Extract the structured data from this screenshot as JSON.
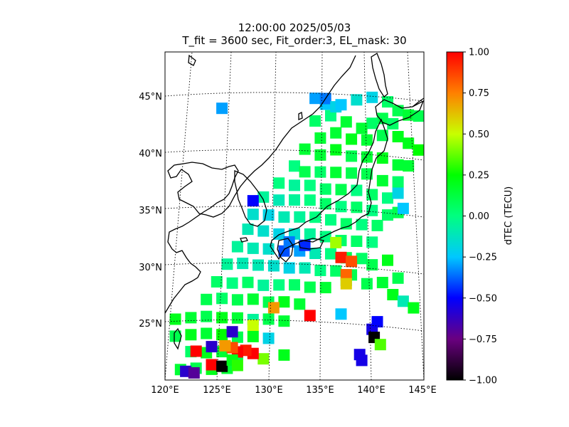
{
  "figure": {
    "title_line1": "12:00:00 2025/05/03",
    "title_line2": "T_fit = 3600 sec, Fit_order:3, EL_mask: 30"
  },
  "chart_data": {
    "type": "heatmap",
    "map": {
      "projection": "conic",
      "lon_range": [
        120,
        145
      ],
      "lat_range": [
        20,
        49
      ],
      "coastlines": true,
      "grid": true,
      "lon_ticks": [
        120,
        125,
        130,
        135,
        140,
        145
      ],
      "lon_tick_labels": [
        "120°E",
        "125°E",
        "130°E",
        "135°E",
        "140°E",
        "145°E"
      ],
      "lat_ticks": [
        25,
        30,
        35,
        40,
        45
      ],
      "lat_tick_labels": [
        "25°N",
        "30°N",
        "35°N",
        "40°N",
        "45°N"
      ]
    },
    "colorbar": {
      "label": "dTEC (TECU)",
      "vmin": -1.0,
      "vmax": 1.0,
      "ticks": [
        -1.0,
        -0.75,
        -0.5,
        -0.25,
        0.0,
        0.25,
        0.5,
        0.75,
        1.0
      ],
      "tick_labels": [
        "−1.00",
        "−0.75",
        "−0.50",
        "−0.25",
        "0.00",
        "0.25",
        "0.50",
        "0.75",
        "1.00"
      ],
      "colormap": [
        "#000000",
        "#6a0080",
        "#0000ff",
        "#00c8ff",
        "#00ff80",
        "#00ff00",
        "#c8ff00",
        "#ff8000",
        "#ff0000"
      ]
    },
    "cells": [
      {
        "lon": 125.5,
        "lat": 43.8,
        "v": -0.3
      },
      {
        "lon": 134.5,
        "lat": 44.5,
        "v": -0.3
      },
      {
        "lon": 135.5,
        "lat": 44.0,
        "v": -0.25
      },
      {
        "lon": 138.5,
        "lat": 44.5,
        "v": -0.15
      },
      {
        "lon": 140.0,
        "lat": 44.8,
        "v": -0.2
      },
      {
        "lon": 141.5,
        "lat": 44.5,
        "v": 0.05
      },
      {
        "lon": 142.5,
        "lat": 43.8,
        "v": 0.1
      },
      {
        "lon": 143.5,
        "lat": 43.5,
        "v": 0.15
      },
      {
        "lon": 144.5,
        "lat": 43.5,
        "v": 0.1
      },
      {
        "lon": 141.0,
        "lat": 43.0,
        "v": 0.1
      },
      {
        "lon": 142.0,
        "lat": 42.6,
        "v": 0.05
      },
      {
        "lon": 140.0,
        "lat": 42.5,
        "v": 0.05
      },
      {
        "lon": 139.0,
        "lat": 42.0,
        "v": 0.15
      },
      {
        "lon": 137.5,
        "lat": 42.5,
        "v": 0.15
      },
      {
        "lon": 136.0,
        "lat": 43.0,
        "v": 0.0
      },
      {
        "lon": 134.5,
        "lat": 42.5,
        "v": 0.05
      },
      {
        "lon": 135.0,
        "lat": 41.0,
        "v": 0.15
      },
      {
        "lon": 136.5,
        "lat": 41.5,
        "v": 0.15
      },
      {
        "lon": 138.0,
        "lat": 41.0,
        "v": 0.2
      },
      {
        "lon": 139.5,
        "lat": 41.0,
        "v": 0.15
      },
      {
        "lon": 141.0,
        "lat": 41.5,
        "v": 0.1
      },
      {
        "lon": 142.5,
        "lat": 41.5,
        "v": 0.2
      },
      {
        "lon": 143.5,
        "lat": 41.0,
        "v": 0.2
      },
      {
        "lon": 144.5,
        "lat": 40.5,
        "v": 0.25
      },
      {
        "lon": 133.5,
        "lat": 40.0,
        "v": 0.15
      },
      {
        "lon": 135.0,
        "lat": 39.5,
        "v": 0.15
      },
      {
        "lon": 136.5,
        "lat": 40.0,
        "v": 0.2
      },
      {
        "lon": 138.0,
        "lat": 39.5,
        "v": 0.1
      },
      {
        "lon": 139.5,
        "lat": 39.5,
        "v": 0.15
      },
      {
        "lon": 141.0,
        "lat": 39.5,
        "v": 0.2
      },
      {
        "lon": 142.5,
        "lat": 39.0,
        "v": 0.15
      },
      {
        "lon": 143.5,
        "lat": 39.0,
        "v": 0.15
      },
      {
        "lon": 132.5,
        "lat": 38.5,
        "v": 0.0
      },
      {
        "lon": 133.5,
        "lat": 38.0,
        "v": 0.1
      },
      {
        "lon": 135.0,
        "lat": 38.0,
        "v": 0.05
      },
      {
        "lon": 136.5,
        "lat": 38.0,
        "v": 0.15
      },
      {
        "lon": 138.0,
        "lat": 38.0,
        "v": 0.1
      },
      {
        "lon": 139.5,
        "lat": 38.0,
        "v": 0.1
      },
      {
        "lon": 141.0,
        "lat": 37.5,
        "v": 0.15
      },
      {
        "lon": 142.5,
        "lat": 37.5,
        "v": 0.05
      },
      {
        "lon": 131.0,
        "lat": 37.0,
        "v": 0.0
      },
      {
        "lon": 132.5,
        "lat": 36.8,
        "v": -0.05
      },
      {
        "lon": 134.0,
        "lat": 36.8,
        "v": 0.0
      },
      {
        "lon": 135.5,
        "lat": 36.5,
        "v": 0.05
      },
      {
        "lon": 137.0,
        "lat": 36.5,
        "v": 0.1
      },
      {
        "lon": 138.5,
        "lat": 36.5,
        "v": 0.0
      },
      {
        "lon": 140.0,
        "lat": 36.2,
        "v": 0.05
      },
      {
        "lon": 141.5,
        "lat": 36.0,
        "v": 0.0
      },
      {
        "lon": 142.5,
        "lat": 36.5,
        "v": -0.2
      },
      {
        "lon": 129.5,
        "lat": 35.8,
        "v": -0.05
      },
      {
        "lon": 131.0,
        "lat": 35.5,
        "v": -0.1
      },
      {
        "lon": 132.5,
        "lat": 35.5,
        "v": -0.05
      },
      {
        "lon": 134.0,
        "lat": 35.5,
        "v": 0.0
      },
      {
        "lon": 135.5,
        "lat": 35.2,
        "v": 0.05
      },
      {
        "lon": 137.0,
        "lat": 35.0,
        "v": 0.0
      },
      {
        "lon": 138.5,
        "lat": 35.0,
        "v": 0.05
      },
      {
        "lon": 140.0,
        "lat": 34.8,
        "v": 0.0
      },
      {
        "lon": 141.5,
        "lat": 34.5,
        "v": 0.05
      },
      {
        "lon": 142.5,
        "lat": 34.8,
        "v": 0.1
      },
      {
        "lon": 128.5,
        "lat": 34.3,
        "v": -0.15
      },
      {
        "lon": 130.0,
        "lat": 34.2,
        "v": -0.2
      },
      {
        "lon": 131.5,
        "lat": 34.0,
        "v": -0.1
      },
      {
        "lon": 133.0,
        "lat": 34.0,
        "v": -0.05
      },
      {
        "lon": 134.5,
        "lat": 34.0,
        "v": 0.0
      },
      {
        "lon": 136.0,
        "lat": 33.8,
        "v": 0.0
      },
      {
        "lon": 137.5,
        "lat": 33.5,
        "v": 0.05
      },
      {
        "lon": 139.0,
        "lat": 33.5,
        "v": 0.0
      },
      {
        "lon": 140.5,
        "lat": 33.5,
        "v": 0.05
      },
      {
        "lon": 128.0,
        "lat": 33.0,
        "v": -0.1
      },
      {
        "lon": 129.5,
        "lat": 32.8,
        "v": -0.15
      },
      {
        "lon": 131.0,
        "lat": 32.5,
        "v": -0.2
      },
      {
        "lon": 132.5,
        "lat": 32.5,
        "v": -0.15
      },
      {
        "lon": 134.0,
        "lat": 32.5,
        "v": -0.05
      },
      {
        "lon": 135.5,
        "lat": 32.3,
        "v": 0.0
      },
      {
        "lon": 137.0,
        "lat": 32.0,
        "v": 0.05
      },
      {
        "lon": 138.5,
        "lat": 32.0,
        "v": 0.05
      },
      {
        "lon": 140.0,
        "lat": 32.0,
        "v": 0.0
      },
      {
        "lon": 127.0,
        "lat": 31.5,
        "v": -0.05
      },
      {
        "lon": 128.5,
        "lat": 31.3,
        "v": -0.1
      },
      {
        "lon": 130.0,
        "lat": 31.2,
        "v": -0.15
      },
      {
        "lon": 131.5,
        "lat": 31.0,
        "v": -0.4
      },
      {
        "lon": 133.0,
        "lat": 31.0,
        "v": -0.3
      },
      {
        "lon": 134.5,
        "lat": 30.8,
        "v": -0.1
      },
      {
        "lon": 136.0,
        "lat": 30.8,
        "v": 0.0
      },
      {
        "lon": 137.5,
        "lat": 30.5,
        "v": 0.1
      },
      {
        "lon": 139.0,
        "lat": 30.5,
        "v": 0.05
      },
      {
        "lon": 126.0,
        "lat": 30.0,
        "v": -0.05
      },
      {
        "lon": 127.5,
        "lat": 30.0,
        "v": -0.1
      },
      {
        "lon": 129.0,
        "lat": 29.8,
        "v": -0.1
      },
      {
        "lon": 130.5,
        "lat": 29.7,
        "v": -0.15
      },
      {
        "lon": 132.0,
        "lat": 29.5,
        "v": -0.2
      },
      {
        "lon": 133.5,
        "lat": 29.5,
        "v": -0.1
      },
      {
        "lon": 135.0,
        "lat": 29.3,
        "v": 0.0
      },
      {
        "lon": 136.5,
        "lat": 29.3,
        "v": 0.05
      },
      {
        "lon": 138.0,
        "lat": 29.0,
        "v": 0.1
      },
      {
        "lon": 125.0,
        "lat": 28.5,
        "v": 0.05
      },
      {
        "lon": 126.5,
        "lat": 28.3,
        "v": 0.0
      },
      {
        "lon": 128.0,
        "lat": 28.3,
        "v": 0.05
      },
      {
        "lon": 129.5,
        "lat": 28.0,
        "v": -0.05
      },
      {
        "lon": 131.0,
        "lat": 28.0,
        "v": 0.0
      },
      {
        "lon": 132.5,
        "lat": 28.0,
        "v": 0.05
      },
      {
        "lon": 134.0,
        "lat": 27.8,
        "v": 0.1
      },
      {
        "lon": 135.5,
        "lat": 27.8,
        "v": 0.15
      },
      {
        "lon": 124.0,
        "lat": 27.0,
        "v": 0.1
      },
      {
        "lon": 125.5,
        "lat": 27.0,
        "v": 0.05
      },
      {
        "lon": 127.0,
        "lat": 26.8,
        "v": 0.1
      },
      {
        "lon": 128.5,
        "lat": 26.8,
        "v": 0.15
      },
      {
        "lon": 130.0,
        "lat": 26.5,
        "v": 0.1
      },
      {
        "lon": 131.5,
        "lat": 26.5,
        "v": 0.2
      },
      {
        "lon": 133.0,
        "lat": 26.3,
        "v": 0.15
      },
      {
        "lon": 121.0,
        "lat": 25.5,
        "v": 0.2
      },
      {
        "lon": 122.5,
        "lat": 25.5,
        "v": 0.15
      },
      {
        "lon": 124.0,
        "lat": 25.5,
        "v": 0.1
      },
      {
        "lon": 125.5,
        "lat": 25.3,
        "v": 0.2
      },
      {
        "lon": 127.0,
        "lat": 25.2,
        "v": 0.15
      },
      {
        "lon": 128.5,
        "lat": 25.0,
        "v": -0.05
      },
      {
        "lon": 130.0,
        "lat": 25.0,
        "v": 0.1
      },
      {
        "lon": 131.5,
        "lat": 24.8,
        "v": 0.15
      },
      {
        "lon": 121.0,
        "lat": 24.0,
        "v": 0.1
      },
      {
        "lon": 122.5,
        "lat": 24.0,
        "v": 0.2
      },
      {
        "lon": 124.0,
        "lat": 24.0,
        "v": 0.15
      },
      {
        "lon": 125.5,
        "lat": 23.8,
        "v": 0.25
      },
      {
        "lon": 127.0,
        "lat": 23.5,
        "v": 0.1
      },
      {
        "lon": 128.5,
        "lat": 23.5,
        "v": 0.2
      },
      {
        "lon": 130.0,
        "lat": 23.3,
        "v": -0.2
      },
      {
        "lon": 122.5,
        "lat": 22.5,
        "v": 0.05
      },
      {
        "lon": 124.0,
        "lat": 22.3,
        "v": 0.2
      },
      {
        "lon": 125.5,
        "lat": 22.3,
        "v": 0.15
      },
      {
        "lon": 127.0,
        "lat": 22.0,
        "v": 0.1
      },
      {
        "lon": 121.5,
        "lat": 21.0,
        "v": 0.15
      },
      {
        "lon": 123.0,
        "lat": 21.0,
        "v": 0.1
      },
      {
        "lon": 124.5,
        "lat": 20.8,
        "v": 0.2
      },
      {
        "lon": 126.0,
        "lat": 20.8,
        "v": 0.15
      },
      {
        "lon": 137.5,
        "lat": 28.5,
        "v": 0.15
      },
      {
        "lon": 139.5,
        "lat": 28.3,
        "v": 0.1
      },
      {
        "lon": 141.0,
        "lat": 28.5,
        "v": 0.15
      },
      {
        "lon": 142.0,
        "lat": 27.5,
        "v": 0.2
      },
      {
        "lon": 140.0,
        "lat": 30.0,
        "v": 0.1
      },
      {
        "lon": 141.5,
        "lat": 30.5,
        "v": 0.2
      },
      {
        "lon": 142.5,
        "lat": 29.0,
        "v": 0.1
      },
      {
        "lon": 143.0,
        "lat": 27.0,
        "v": -0.1
      },
      {
        "lon": 144.0,
        "lat": 26.5,
        "v": 0.2
      },
      {
        "lon": 133.5,
        "lat": 31.5,
        "v": -0.45
      },
      {
        "lon": 132.0,
        "lat": 31.8,
        "v": -0.35
      },
      {
        "lon": 128.5,
        "lat": 35.5,
        "v": -0.5
      },
      {
        "lon": 126.5,
        "lat": 24.0,
        "v": -0.6
      },
      {
        "lon": 137.5,
        "lat": 29.0,
        "v": 0.8
      },
      {
        "lon": 137.0,
        "lat": 30.5,
        "v": 0.95
      },
      {
        "lon": 138.0,
        "lat": 30.2,
        "v": 0.85
      },
      {
        "lon": 136.5,
        "lat": 31.8,
        "v": 0.45
      },
      {
        "lon": 137.5,
        "lat": 28.2,
        "v": 0.6
      },
      {
        "lon": 130.5,
        "lat": 26.0,
        "v": 0.7
      },
      {
        "lon": 128.5,
        "lat": 24.5,
        "v": 0.5
      },
      {
        "lon": 134.0,
        "lat": 25.3,
        "v": 1.0
      },
      {
        "lon": 137.0,
        "lat": 25.5,
        "v": -0.25
      },
      {
        "lon": 140.0,
        "lat": 24.3,
        "v": -0.55
      },
      {
        "lon": 140.2,
        "lat": 23.6,
        "v": -1.0
      },
      {
        "lon": 140.8,
        "lat": 23.0,
        "v": 0.35
      },
      {
        "lon": 138.8,
        "lat": 22.0,
        "v": -0.55
      },
      {
        "lon": 131.5,
        "lat": 21.8,
        "v": 0.2
      },
      {
        "lon": 129.5,
        "lat": 21.5,
        "v": 0.4
      },
      {
        "lon": 128.5,
        "lat": 22.0,
        "v": 1.0
      },
      {
        "lon": 127.8,
        "lat": 22.3,
        "v": 0.95
      },
      {
        "lon": 127.0,
        "lat": 22.2,
        "v": 1.0
      },
      {
        "lon": 126.5,
        "lat": 22.6,
        "v": 0.85
      },
      {
        "lon": 125.8,
        "lat": 22.8,
        "v": 0.7
      },
      {
        "lon": 124.5,
        "lat": 22.8,
        "v": -0.6
      },
      {
        "lon": 123.0,
        "lat": 22.5,
        "v": 1.0
      },
      {
        "lon": 124.5,
        "lat": 21.2,
        "v": 1.0
      },
      {
        "lon": 125.5,
        "lat": 21.0,
        "v": -1.0
      },
      {
        "lon": 122.0,
        "lat": 20.8,
        "v": -0.6
      },
      {
        "lon": 122.8,
        "lat": 20.6,
        "v": -0.7
      },
      {
        "lon": 126.5,
        "lat": 21.5,
        "v": 0.2
      },
      {
        "lon": 127.0,
        "lat": 21.0,
        "v": 0.3
      },
      {
        "lon": 140.5,
        "lat": 25.0,
        "v": -0.5
      },
      {
        "lon": 139.0,
        "lat": 21.5,
        "v": -0.55
      },
      {
        "lon": 135.5,
        "lat": 44.5,
        "v": -0.35
      },
      {
        "lon": 136.5,
        "lat": 43.8,
        "v": -0.2
      },
      {
        "lon": 137.0,
        "lat": 44.0,
        "v": -0.25
      },
      {
        "lon": 143.0,
        "lat": 35.2,
        "v": -0.25
      }
    ]
  }
}
